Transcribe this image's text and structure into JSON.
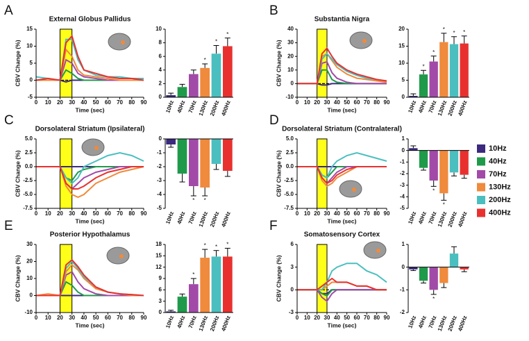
{
  "chart_data": [
    {
      "type": "line",
      "panel": "A",
      "title": "External Globus Pallidus",
      "xlabel": "Time (sec)",
      "ylabel": "CBV Change (%)",
      "x": [
        0,
        10,
        20,
        25,
        30,
        35,
        40,
        50,
        60,
        70,
        80,
        90
      ],
      "xlim": [
        0,
        90
      ],
      "xticks": [
        0,
        10,
        20,
        30,
        40,
        50,
        60,
        70,
        80,
        90
      ],
      "ylim": [
        -5,
        15
      ],
      "yticks": [
        -5,
        0,
        5,
        10,
        15
      ],
      "highlight": [
        20,
        30
      ],
      "series": [
        {
          "name": "10Hz",
          "color": "#3b2a7e",
          "values": [
            0,
            0,
            0,
            -0.5,
            0,
            0,
            0,
            0,
            0,
            0,
            0,
            0
          ]
        },
        {
          "name": "40Hz",
          "color": "#1f9a4a",
          "values": [
            0,
            0,
            0,
            3,
            2,
            0.5,
            0,
            0,
            0,
            0,
            0,
            0
          ]
        },
        {
          "name": "70Hz",
          "color": "#a24aa8",
          "values": [
            0,
            0,
            0,
            6,
            5,
            2,
            1,
            0.5,
            0,
            0,
            0,
            0
          ]
        },
        {
          "name": "130Hz",
          "color": "#f08a3c",
          "values": [
            0,
            0,
            0,
            9,
            7,
            3,
            1.5,
            1,
            0.5,
            0,
            0,
            0
          ]
        },
        {
          "name": "200Hz",
          "color": "#4bbfbf",
          "values": [
            1,
            0.5,
            0,
            12,
            12,
            6,
            3,
            1.5,
            1,
            1,
            0.5,
            0.5
          ]
        },
        {
          "name": "400Hz",
          "color": "#e8312f",
          "values": [
            0,
            0.5,
            0,
            11,
            13,
            7,
            3,
            2,
            1,
            0.5,
            0.5,
            0
          ]
        }
      ]
    },
    {
      "type": "bar",
      "categories": [
        "10Hz",
        "40Hz",
        "70Hz",
        "130Hz",
        "200Hz",
        "400Hz"
      ],
      "values": [
        0.3,
        1.5,
        3.4,
        4.3,
        6.4,
        7.5
      ],
      "errors": [
        0.3,
        0.4,
        0.6,
        0.6,
        1.2,
        1.2
      ],
      "colors": [
        "#3b2a7e",
        "#1f9a4a",
        "#a24aa8",
        "#f08a3c",
        "#4bbfbf",
        "#e8312f"
      ],
      "ylim": [
        0,
        10
      ],
      "yticks": [
        0,
        2,
        4,
        6,
        8,
        10
      ],
      "significant": [
        false,
        false,
        false,
        true,
        true,
        true
      ],
      "annotation": "*"
    },
    {
      "type": "line",
      "panel": "B",
      "title": "Substantia Nigra",
      "xlabel": "Time (sec)",
      "ylabel": "CBV Change (%)",
      "x": [
        0,
        10,
        20,
        25,
        30,
        35,
        40,
        50,
        60,
        70,
        80,
        90
      ],
      "xlim": [
        0,
        90
      ],
      "xticks": [
        0,
        10,
        20,
        30,
        40,
        50,
        60,
        70,
        80,
        90
      ],
      "ylim": [
        -10,
        40
      ],
      "yticks": [
        -10,
        0,
        10,
        20,
        30,
        40
      ],
      "highlight": [
        20,
        30
      ],
      "series": [
        {
          "color": "#3b2a7e",
          "values": [
            0,
            0,
            0,
            -1,
            -1,
            0,
            0,
            0,
            0,
            0,
            0,
            0
          ]
        },
        {
          "color": "#1f9a4a",
          "values": [
            0,
            0,
            0,
            10,
            10,
            3,
            1,
            0,
            0,
            0,
            0,
            0
          ]
        },
        {
          "color": "#a24aa8",
          "values": [
            0,
            0,
            0,
            15,
            16,
            8,
            4,
            1,
            0,
            0,
            0,
            0
          ]
        },
        {
          "color": "#f08a3c",
          "values": [
            0,
            0,
            0,
            20,
            22,
            17,
            12,
            7,
            4,
            3,
            2,
            1
          ]
        },
        {
          "color": "#4bbfbf",
          "values": [
            0,
            0,
            0,
            18,
            22,
            18,
            14,
            9,
            6,
            4,
            3,
            2
          ]
        },
        {
          "color": "#e8312f",
          "values": [
            0,
            0,
            0,
            22,
            26,
            20,
            15,
            10,
            7,
            5,
            3,
            2
          ]
        }
      ]
    },
    {
      "type": "bar",
      "categories": [
        "10Hz",
        "40Hz",
        "70Hz",
        "130Hz",
        "200Hz",
        "400Hz"
      ],
      "values": [
        0.4,
        6.7,
        10.5,
        16.2,
        15.6,
        15.8
      ],
      "errors": [
        0.6,
        1.2,
        1.6,
        2.6,
        2.2,
        2.2
      ],
      "colors": [
        "#3b2a7e",
        "#1f9a4a",
        "#a24aa8",
        "#f08a3c",
        "#4bbfbf",
        "#e8312f"
      ],
      "ylim": [
        0,
        20
      ],
      "yticks": [
        0,
        5,
        10,
        15,
        20
      ],
      "significant": [
        false,
        true,
        true,
        true,
        true,
        true
      ],
      "annotation": "*"
    },
    {
      "type": "line",
      "panel": "C",
      "title": "Dorsolateral Striatum (Ipsilateral)",
      "xlabel": "Time (sec)",
      "ylabel": "CBV Change (%)",
      "x": [
        0,
        10,
        20,
        25,
        30,
        35,
        40,
        50,
        60,
        70,
        80,
        90
      ],
      "xlim": [
        0,
        90
      ],
      "xticks": [
        0,
        10,
        20,
        30,
        40,
        50,
        60,
        70,
        80,
        90
      ],
      "ylim": [
        -7.5,
        5
      ],
      "yticks": [
        -7.5,
        {
          "value": -5,
          "label": "-5.0"
        },
        -2.5,
        {
          "value": 0,
          "label": "0.0"
        },
        2.5,
        {
          "value": 5,
          "label": "5.0"
        }
      ],
      "highlight": [
        20,
        30
      ],
      "series": [
        {
          "color": "#3b2a7e",
          "values": [
            0,
            0,
            0,
            0,
            0,
            0,
            0,
            0,
            0,
            0,
            0,
            0
          ]
        },
        {
          "color": "#1f9a4a",
          "values": [
            0,
            0,
            0,
            -2,
            -2.5,
            -1,
            -0.5,
            0,
            0,
            0,
            0,
            0
          ]
        },
        {
          "color": "#a24aa8",
          "values": [
            0,
            0,
            0,
            -3,
            -4,
            -3,
            -2,
            -1,
            -0.5,
            0,
            0,
            0
          ]
        },
        {
          "color": "#f08a3c",
          "values": [
            0,
            0,
            0,
            -3.5,
            -5,
            -5.5,
            -5,
            -3,
            -2,
            -1,
            -0.5,
            0
          ]
        },
        {
          "color": "#4bbfbf",
          "values": [
            0,
            0,
            0,
            -2,
            -3,
            -2,
            0,
            1,
            2,
            2.5,
            2,
            1
          ]
        },
        {
          "color": "#e8312f",
          "values": [
            0,
            0,
            0,
            -3,
            -4,
            -4,
            -3.5,
            -2,
            -1,
            -0.5,
            0,
            0
          ]
        }
      ]
    },
    {
      "type": "bar",
      "categories": [
        "10Hz",
        "40Hz",
        "70Hz",
        "130Hz",
        "200Hz",
        "400Hz"
      ],
      "values": [
        -0.4,
        -2.5,
        -3.4,
        -3.5,
        -1.8,
        -2.3
      ],
      "errors": [
        0.2,
        0.6,
        0.7,
        0.6,
        0.4,
        0.4
      ],
      "colors": [
        "#3b2a7e",
        "#1f9a4a",
        "#a24aa8",
        "#f08a3c",
        "#4bbfbf",
        "#e8312f"
      ],
      "ylim": [
        -5,
        0
      ],
      "yticks": [
        0,
        -1,
        -2,
        -3,
        -4,
        -5
      ],
      "significant": [
        false,
        false,
        true,
        true,
        false,
        false
      ],
      "annotation": "*"
    },
    {
      "type": "line",
      "panel": "D",
      "title": "Dorsolateral Striatum (Contralateral)",
      "xlabel": "Time (sec)",
      "ylabel": "CBV Change (%)",
      "x": [
        0,
        10,
        20,
        25,
        30,
        35,
        40,
        50,
        60,
        70,
        80,
        90
      ],
      "xlim": [
        0,
        90
      ],
      "xticks": [
        0,
        10,
        20,
        30,
        40,
        50,
        60,
        70,
        80,
        90
      ],
      "ylim": [
        -7.5,
        5
      ],
      "yticks": [
        -7.5,
        {
          "value": -5,
          "label": "-5.0"
        },
        -2.5,
        {
          "value": 0,
          "label": "0.0"
        },
        2.5,
        {
          "value": 5,
          "label": "5.0"
        }
      ],
      "highlight": [
        20,
        30
      ],
      "series": [
        {
          "color": "#3b2a7e",
          "values": [
            0,
            0,
            0,
            0,
            0,
            0,
            0,
            0,
            0,
            0,
            0,
            0
          ]
        },
        {
          "color": "#1f9a4a",
          "values": [
            0,
            0,
            0,
            -1.5,
            -2,
            -1,
            0,
            0,
            0,
            0,
            0,
            0
          ]
        },
        {
          "color": "#a24aa8",
          "values": [
            0,
            0,
            0,
            -2,
            -3,
            -2,
            -1,
            0,
            0,
            0,
            0,
            0
          ]
        },
        {
          "color": "#f08a3c",
          "values": [
            0,
            0,
            0,
            -2.5,
            -3.5,
            -3,
            -2,
            -1,
            0,
            0,
            0,
            0
          ]
        },
        {
          "color": "#4bbfbf",
          "values": [
            0,
            0,
            0,
            -1.5,
            -2,
            0,
            1,
            2,
            2.5,
            2,
            1.5,
            1
          ]
        },
        {
          "color": "#e8312f",
          "values": [
            0,
            0,
            0,
            -2,
            -3,
            -2.5,
            -1.5,
            -0.5,
            0,
            0,
            0,
            0
          ]
        }
      ]
    },
    {
      "type": "bar",
      "categories": [
        "10Hz",
        "40Hz",
        "70Hz",
        "130Hz",
        "200Hz",
        "400Hz"
      ],
      "values": [
        0.2,
        -1.5,
        -2.6,
        -3.7,
        -1.9,
        -2.1
      ],
      "errors": [
        0.2,
        0.2,
        0.5,
        0.6,
        0.3,
        0.3
      ],
      "colors": [
        "#3b2a7e",
        "#1f9a4a",
        "#a24aa8",
        "#f08a3c",
        "#4bbfbf",
        "#e8312f"
      ],
      "ylim": [
        -5,
        1
      ],
      "yticks": [
        1,
        0,
        -1,
        -2,
        -3,
        -4,
        -5
      ],
      "significant": [
        false,
        false,
        true,
        true,
        false,
        false
      ],
      "annotation": "*"
    },
    {
      "type": "line",
      "panel": "E",
      "title": "Posterior Hypothalamus",
      "xlabel": "Time (sec)",
      "ylabel": "CBV Change (%)",
      "x": [
        0,
        10,
        20,
        25,
        30,
        35,
        40,
        50,
        60,
        70,
        80,
        90
      ],
      "xlim": [
        0,
        90
      ],
      "xticks": [
        0,
        10,
        20,
        30,
        40,
        50,
        60,
        70,
        80,
        90
      ],
      "ylim": [
        -10,
        30
      ],
      "yticks": [
        -10,
        0,
        10,
        20,
        30
      ],
      "highlight": [
        20,
        30
      ],
      "series": [
        {
          "color": "#3b2a7e",
          "values": [
            0,
            0,
            0,
            0,
            0,
            0,
            0,
            0,
            0,
            0,
            0,
            0
          ]
        },
        {
          "color": "#1f9a4a",
          "values": [
            0,
            0,
            0,
            8,
            6,
            2,
            0,
            0,
            0,
            0,
            0,
            0
          ]
        },
        {
          "color": "#a24aa8",
          "values": [
            0,
            0,
            0,
            12,
            14,
            8,
            4,
            1,
            0,
            0,
            0,
            0
          ]
        },
        {
          "color": "#f08a3c",
          "values": [
            0,
            1,
            0,
            14,
            18,
            15,
            10,
            4,
            2,
            1,
            0,
            0
          ]
        },
        {
          "color": "#4bbfbf",
          "values": [
            0,
            0,
            0,
            16,
            20,
            16,
            11,
            5,
            2,
            1,
            0.5,
            0
          ]
        },
        {
          "color": "#e8312f",
          "values": [
            0,
            0,
            0,
            18,
            21,
            17,
            12,
            5,
            2,
            1,
            0.5,
            0
          ]
        }
      ]
    },
    {
      "type": "bar",
      "categories": [
        "10Hz",
        "40Hz",
        "70Hz",
        "130Hz",
        "200Hz",
        "400Hz"
      ],
      "values": [
        0.3,
        4.2,
        7.5,
        14.5,
        14.8,
        14.8
      ],
      "errors": [
        0.3,
        0.7,
        1.5,
        2.2,
        1.6,
        2.2
      ],
      "colors": [
        "#3b2a7e",
        "#1f9a4a",
        "#a24aa8",
        "#f08a3c",
        "#4bbfbf",
        "#e8312f"
      ],
      "ylim": [
        0,
        18
      ],
      "yticks": [
        0,
        3,
        6,
        9,
        12,
        15,
        18
      ],
      "significant": [
        false,
        false,
        true,
        true,
        true,
        true
      ],
      "annotation": "*"
    },
    {
      "type": "line",
      "panel": "F",
      "title": "Somatosensory Cortex",
      "xlabel": "Time (sec)",
      "ylabel": "CBV Change (%)",
      "x": [
        0,
        10,
        20,
        25,
        30,
        35,
        40,
        50,
        60,
        70,
        80,
        90
      ],
      "xlim": [
        0,
        90
      ],
      "xticks": [
        0,
        10,
        20,
        30,
        40,
        50,
        60,
        70,
        80,
        90
      ],
      "ylim": [
        -3,
        6
      ],
      "yticks": [
        -3,
        0,
        3,
        6
      ],
      "highlight": [
        20,
        30
      ],
      "series": [
        {
          "color": "#3b2a7e",
          "values": [
            0,
            0,
            0,
            -0.5,
            -0.5,
            0,
            0,
            0,
            0,
            0,
            0,
            0
          ]
        },
        {
          "color": "#1f9a4a",
          "values": [
            0,
            0,
            0,
            -0.5,
            -0.8,
            0,
            0,
            0,
            0,
            0,
            0,
            0
          ]
        },
        {
          "color": "#a24aa8",
          "values": [
            0,
            0,
            0,
            -1,
            -1.5,
            -0.5,
            0,
            0,
            0,
            0,
            0,
            0
          ]
        },
        {
          "color": "#f08a3c",
          "values": [
            0,
            0,
            0,
            0,
            0.5,
            1,
            1,
            1,
            0.5,
            0.5,
            0,
            0
          ]
        },
        {
          "color": "#4bbfbf",
          "values": [
            0,
            0,
            0,
            0,
            1,
            2.5,
            3,
            3.5,
            3.5,
            2.5,
            2,
            1
          ]
        },
        {
          "color": "#e8312f",
          "values": [
            0,
            0,
            0,
            0.5,
            1,
            1.5,
            1,
            1,
            0.5,
            0.5,
            0,
            0
          ]
        }
      ]
    },
    {
      "type": "bar",
      "categories": [
        "10Hz",
        "40Hz",
        "70Hz",
        "130Hz",
        "200Hz",
        "400Hz"
      ],
      "values": [
        -0.1,
        -0.6,
        -1.0,
        -0.7,
        0.6,
        -0.1
      ],
      "errors": [
        0.05,
        0.1,
        0.2,
        0.2,
        0.3,
        0.1
      ],
      "colors": [
        "#3b2a7e",
        "#1f9a4a",
        "#a24aa8",
        "#f08a3c",
        "#4bbfbf",
        "#e8312f"
      ],
      "ylim": [
        -2,
        1
      ],
      "yticks": [
        1,
        0,
        -1,
        -2
      ],
      "significant": [
        false,
        false,
        true,
        false,
        false,
        false
      ],
      "annotation": "*"
    }
  ]
}
